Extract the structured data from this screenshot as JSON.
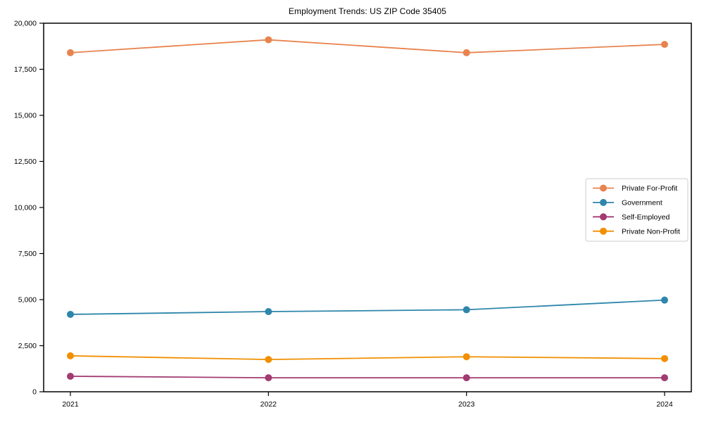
{
  "chart_data": {
    "type": "line",
    "title": "Employment Trends: US ZIP Code 35405",
    "x": [
      "2021",
      "2022",
      "2023",
      "2024"
    ],
    "series": [
      {
        "name": "Private For-Profit",
        "color": "#E8834E",
        "values": [
          18400,
          19100,
          18400,
          18850
        ]
      },
      {
        "name": "Government",
        "color": "#2E86AB",
        "values": [
          4200,
          4350,
          4450,
          4975
        ]
      },
      {
        "name": "Self-Employed",
        "color": "#A23B72",
        "values": [
          840,
          760,
          760,
          760
        ]
      },
      {
        "name": "Private Non-Profit",
        "color": "#F18F01",
        "values": [
          1950,
          1750,
          1900,
          1800
        ]
      }
    ],
    "ylim": [
      0,
      20000
    ],
    "ytick_step": 2500,
    "ytick_labels": [
      "0",
      "2,500",
      "5,000",
      "7,500",
      "10,000",
      "12,500",
      "15,000",
      "17,500",
      "20,000"
    ],
    "grid": false,
    "legend_position": "center-right",
    "axis_color": "#000000",
    "background_color": "#ffffff",
    "marker": "circle"
  }
}
